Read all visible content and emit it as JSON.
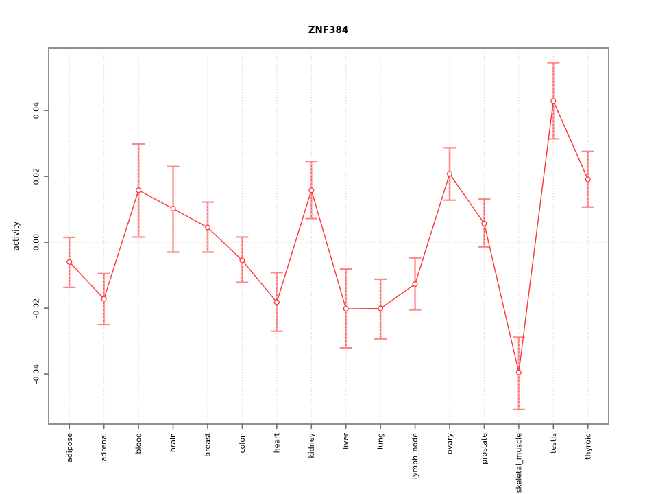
{
  "page": {
    "background": "#ffffff"
  },
  "chart_data": {
    "type": "line",
    "title": "ZNF384",
    "xlabel": "",
    "ylabel": "activity",
    "categories": [
      "adipose",
      "adrenal",
      "blood",
      "brain",
      "breast",
      "colon",
      "heart",
      "kidney",
      "liver",
      "lung",
      "lymph_node",
      "ovary",
      "prostate",
      "skeletal_muscle",
      "testis",
      "thyroid"
    ],
    "series": [
      {
        "name": "ZNF384 activity",
        "point_style": "open-circle",
        "values": [
          -0.006,
          -0.0172,
          0.0158,
          0.0102,
          0.0045,
          -0.0055,
          -0.0182,
          0.0158,
          -0.0202,
          -0.0201,
          -0.0127,
          0.0208,
          0.0057,
          -0.0395,
          0.0429,
          0.0191
        ],
        "ci_lower": [
          -0.0137,
          -0.025,
          0.0016,
          -0.003,
          -0.003,
          -0.0122,
          -0.027,
          0.0072,
          -0.0321,
          -0.0293,
          -0.0205,
          0.0128,
          -0.0014,
          -0.0508,
          0.0314,
          0.0107
        ],
        "ci_upper": [
          0.0015,
          -0.0095,
          0.0298,
          0.023,
          0.0122,
          0.0016,
          -0.0092,
          0.0246,
          -0.0081,
          -0.0112,
          -0.0047,
          0.0287,
          0.0131,
          -0.0288,
          0.0545,
          0.0276
        ]
      }
    ],
    "yticks": [
      0.04,
      0.02,
      0.0,
      -0.02,
      -0.04
    ],
    "ylim": [
      -0.0552,
      0.059
    ],
    "legend": null,
    "grid": {
      "vertical_per_category": true,
      "horizontal_zero_line": true
    },
    "colors": {
      "line": "#ff3333",
      "point_stroke": "#ff3333",
      "point_fill": "#ffffff",
      "error_band": "#ffb0b0",
      "error_cap": "#ff8585",
      "error_dash": "#ff4747",
      "grid": "#d6d6d6",
      "axis_box": "#8f8f8f",
      "tick": "#6e6e6e",
      "text": "#000000"
    }
  }
}
